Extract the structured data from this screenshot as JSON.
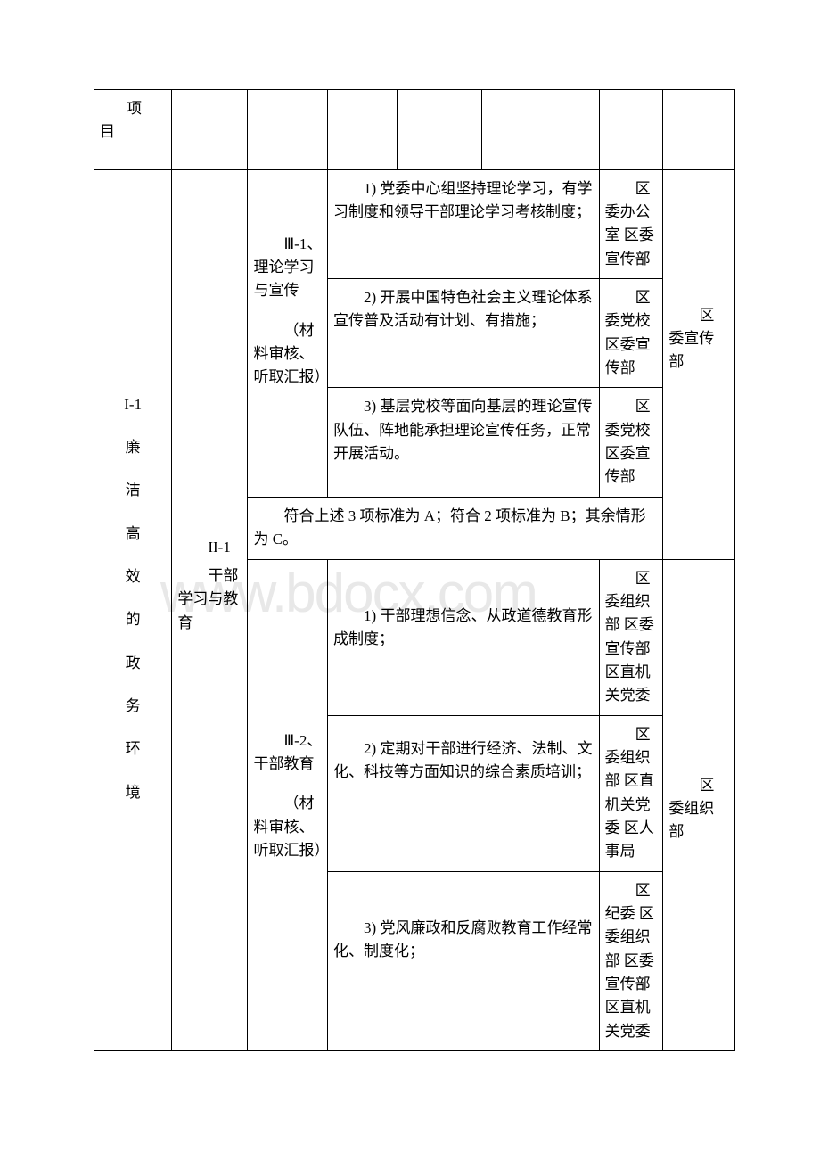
{
  "watermark": "www.bdocx.com",
  "header": {
    "col1": "项目"
  },
  "col_widths": {
    "c1": 70,
    "c2": 66,
    "c3": 70,
    "c4": 60,
    "c5": 72,
    "c6": 104,
    "c7": 56,
    "c8": 62
  },
  "table": {
    "level1": {
      "id": "I-1",
      "label_chars": [
        "廉",
        "洁",
        "高",
        "效",
        "的",
        "政",
        "务",
        "环",
        "境"
      ]
    },
    "level2": {
      "id": "II-1",
      "label": "干部学习与教育"
    },
    "group1": {
      "level3": "Ⅲ-1、理论学习与宣传",
      "method": "（材料审核、听取汇报）",
      "items": [
        {
          "text": "1) 党委中心组坚持理论学习，有学习制度和领导干部理论学习考核制度；",
          "dept": "区委办公室 区委宣传部"
        },
        {
          "text": "2) 开展中国特色社会主义理论体系宣传普及活动有计划、有措施；",
          "dept": "区委党校 区委宣传部"
        },
        {
          "text": "3) 基层党校等面向基层的理论宣传队伍、阵地能承担理论宣传任务，正常开展活动。",
          "dept": "区委党校 区委宣传部"
        }
      ],
      "grade": "符合上述 3 项标准为 A；符合 2 项标准为 B；其余情形为 C。",
      "lead": "区委宣传部"
    },
    "group2": {
      "level3": "Ⅲ-2、干部教育",
      "method": "（材料审核、听取汇报）",
      "items": [
        {
          "text": "1) 干部理想信念、从政道德教育形成制度；",
          "dept": "区委组织部 区委宣传部 区直机关党委"
        },
        {
          "text": "2) 定期对干部进行经济、法制、文化、科技等方面知识的综合素质培训；",
          "dept": "区委组织部 区直机关党委 区人事局"
        },
        {
          "text": "3) 党风廉政和反腐败教育工作经常化、制度化；",
          "dept": "区纪委 区委组织部 区委宣传部 区直机关党委"
        }
      ],
      "lead": "区委组织部"
    }
  }
}
